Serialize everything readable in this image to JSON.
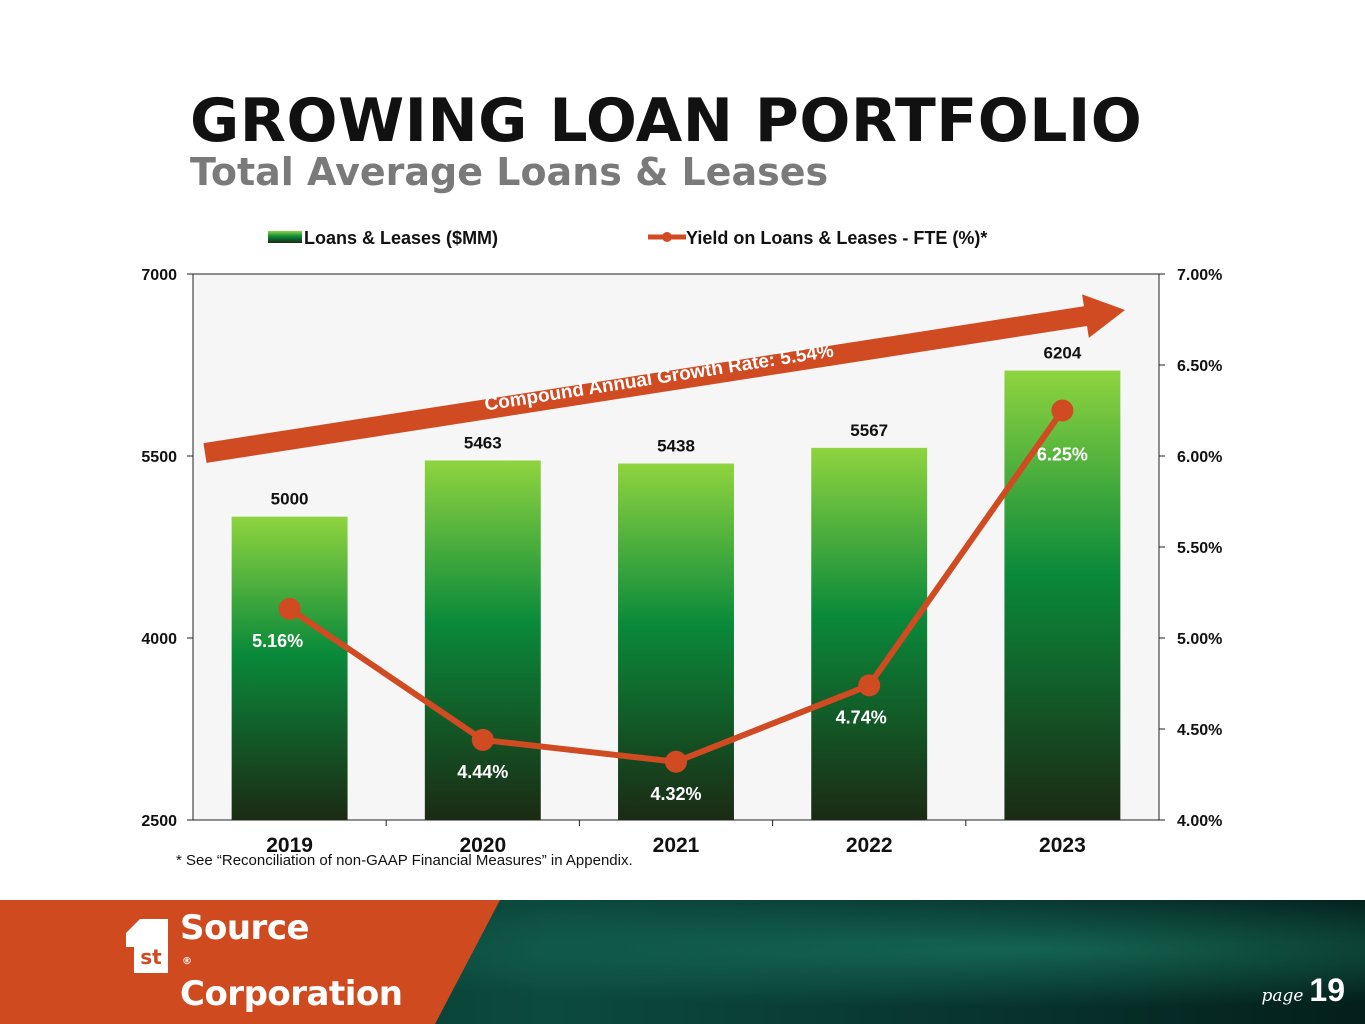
{
  "header": {
    "title": "GROWING LOAN PORTFOLIO",
    "subtitle": "Total Average Loans & Leases"
  },
  "chart_data": {
    "type": "bar",
    "categories": [
      "2019",
      "2020",
      "2021",
      "2022",
      "2023"
    ],
    "series": [
      {
        "name": "Loans & Leases ($MM)",
        "type": "bar",
        "axis": "left",
        "values": [
          5000,
          5463,
          5438,
          5567,
          6204
        ],
        "labels": [
          "5000",
          "5463",
          "5438",
          "5567",
          "6204"
        ],
        "color_top": "#8fd43f",
        "color_mid": "#0a8a3a",
        "color_bottom": "#1b2a14"
      },
      {
        "name": "Yield on Loans & Leases - FTE (%)*",
        "type": "line",
        "axis": "right",
        "values": [
          5.16,
          4.44,
          4.32,
          4.74,
          6.25
        ],
        "labels": [
          "5.16%",
          "4.44%",
          "4.32%",
          "4.74%",
          "6.25%"
        ],
        "color": "#d04a22"
      }
    ],
    "y_left": {
      "range": [
        2500,
        7000
      ],
      "ticks": [
        "2500",
        "4000",
        "5500",
        "7000"
      ]
    },
    "y_right": {
      "range": [
        4.0,
        7.0
      ],
      "ticks": [
        "4.00%",
        "4.50%",
        "5.00%",
        "5.50%",
        "6.00%",
        "6.50%",
        "7.00%"
      ]
    },
    "legend_position": "top",
    "grid": false,
    "plot_background": "#f6f6f6",
    "annotation": "Compound Annual Growth Rate: 5.54%",
    "annotation_color": "#d04a22"
  },
  "footnote": "* See “Reconciliation of non-GAAP Financial Measures” in Appendix.",
  "footer": {
    "logo_line1": "Source",
    "logo_line2": "Corporation",
    "logo_mark_text": "st",
    "page_word": "page",
    "page_number": "19",
    "brand_orange": "#cf4a1f",
    "brand_green": "#0c4a3e"
  }
}
